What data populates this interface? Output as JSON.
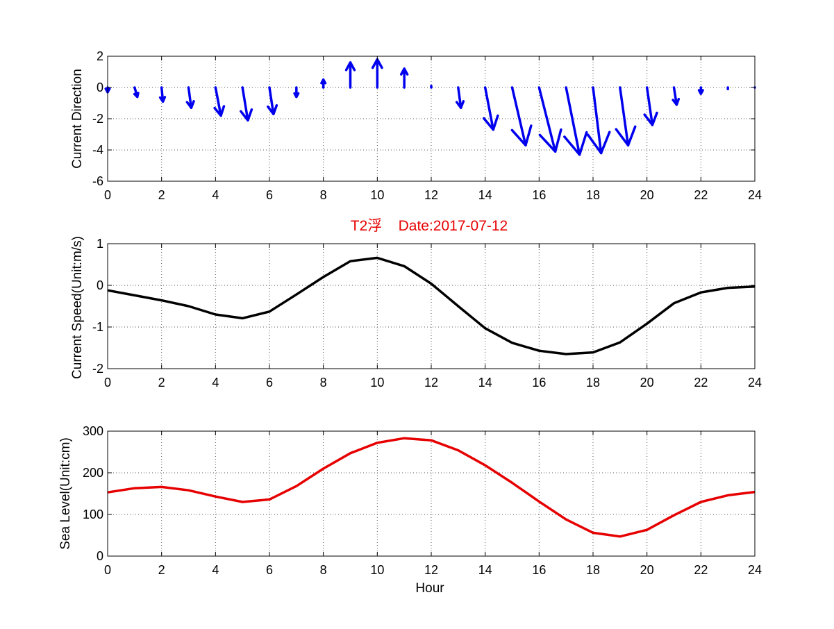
{
  "colors": {
    "arrow": "#0000ee",
    "speed": "#000000",
    "sea_level": "#e60000",
    "title": "#e60000"
  },
  "chart_data": [
    {
      "type": "quiver",
      "title": "",
      "xlabel": "",
      "ylabel": "Current Direction",
      "xlim": [
        0,
        24
      ],
      "ylim": [
        -6,
        2
      ],
      "xticks": [
        "0",
        "2",
        "4",
        "6",
        "8",
        "10",
        "12",
        "14",
        "16",
        "18",
        "20",
        "22",
        "24"
      ],
      "yticks": [
        "2",
        "0",
        "-2",
        "-4",
        "-6"
      ],
      "grid": true,
      "series": [
        {
          "hours": [
            0,
            1,
            2,
            3,
            4,
            5,
            6,
            7,
            8,
            9,
            10,
            11,
            12,
            13,
            14,
            15,
            16,
            17,
            18,
            19,
            20,
            21,
            22,
            23,
            24
          ],
          "u": [
            0.0,
            0.1,
            0.05,
            0.1,
            0.2,
            0.2,
            0.15,
            0.0,
            0.0,
            0.0,
            0.0,
            0.0,
            0.0,
            0.1,
            0.3,
            0.5,
            0.6,
            0.5,
            0.3,
            0.3,
            0.2,
            0.1,
            0.0,
            0.0,
            0.0
          ],
          "v": [
            -0.3,
            -0.6,
            -0.9,
            -1.3,
            -1.8,
            -2.1,
            -1.7,
            -0.6,
            0.5,
            1.6,
            1.8,
            1.2,
            0.1,
            -1.3,
            -2.7,
            -3.7,
            -4.1,
            -4.3,
            -4.2,
            -3.7,
            -2.4,
            -1.1,
            -0.4,
            -0.1,
            0.0
          ]
        }
      ]
    },
    {
      "type": "line",
      "title": "T2浮    Date:2017-07-12",
      "xlabel": "",
      "ylabel": "Current Speed(Unit:m/s)",
      "xlim": [
        0,
        24
      ],
      "ylim": [
        -2,
        1
      ],
      "xticks": [
        "0",
        "2",
        "4",
        "6",
        "8",
        "10",
        "12",
        "14",
        "16",
        "18",
        "20",
        "22",
        "24"
      ],
      "yticks": [
        "1",
        "0",
        "-1",
        "-2"
      ],
      "grid": true,
      "x": [
        0,
        1,
        2,
        3,
        4,
        5,
        6,
        7,
        8,
        9,
        10,
        11,
        12,
        13,
        14,
        15,
        16,
        17,
        18,
        19,
        20,
        21,
        22,
        23,
        24
      ],
      "series": [
        {
          "values": [
            -0.12,
            -0.24,
            -0.36,
            -0.5,
            -0.7,
            -0.79,
            -0.63,
            -0.22,
            0.2,
            0.58,
            0.66,
            0.46,
            0.04,
            -0.5,
            -1.03,
            -1.38,
            -1.57,
            -1.65,
            -1.61,
            -1.37,
            -0.92,
            -0.43,
            -0.17,
            -0.06,
            -0.03
          ]
        }
      ]
    },
    {
      "type": "line",
      "title": "",
      "xlabel": "Hour",
      "ylabel": "Sea Level(Unit:cm)",
      "xlim": [
        0,
        24
      ],
      "ylim": [
        0,
        300
      ],
      "xticks": [
        "0",
        "2",
        "4",
        "6",
        "8",
        "10",
        "12",
        "14",
        "16",
        "18",
        "20",
        "22",
        "24"
      ],
      "yticks": [
        "300",
        "200",
        "100",
        "0"
      ],
      "grid": true,
      "x": [
        0,
        1,
        2,
        3,
        4,
        5,
        6,
        7,
        8,
        9,
        10,
        11,
        12,
        13,
        14,
        15,
        16,
        17,
        18,
        19,
        20,
        21,
        22,
        23,
        24
      ],
      "series": [
        {
          "values": [
            153,
            163,
            166,
            158,
            143,
            130,
            136,
            168,
            210,
            247,
            272,
            283,
            278,
            254,
            218,
            176,
            131,
            88,
            56,
            47,
            63,
            98,
            130,
            146,
            154
          ]
        }
      ]
    }
  ]
}
